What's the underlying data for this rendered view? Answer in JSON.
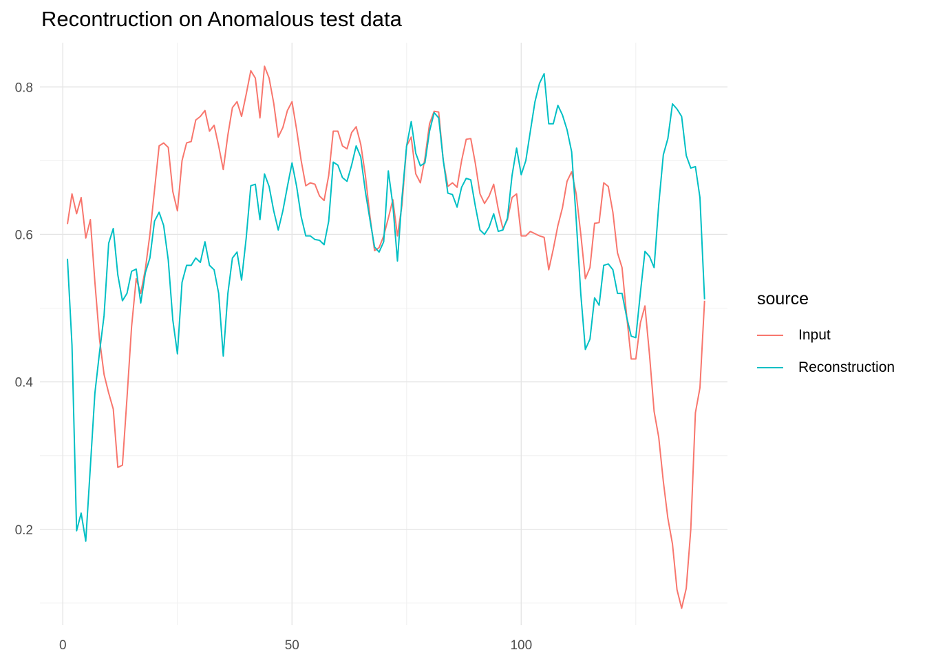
{
  "chart_data": {
    "type": "line",
    "title": "Recontruction on Anomalous test data",
    "xlabel": "",
    "ylabel": "",
    "xlim": [
      -5,
      145
    ],
    "ylim": [
      0.07,
      0.86
    ],
    "x_ticks": [
      0,
      50,
      100
    ],
    "x_minor_ticks": [
      25,
      75,
      125
    ],
    "y_ticks": [
      0.2,
      0.4,
      0.6,
      0.8
    ],
    "y_minor_ticks": [
      0.1,
      0.3,
      0.5,
      0.7
    ],
    "grid": true,
    "legend": {
      "title": "source",
      "position": "right"
    },
    "series": [
      {
        "name": "Input",
        "color": "#F8766D",
        "values": [
          0.614,
          0.655,
          0.628,
          0.65,
          0.595,
          0.62,
          0.535,
          0.458,
          0.41,
          0.385,
          0.363,
          0.284,
          0.287,
          0.378,
          0.475,
          0.54,
          0.52,
          0.553,
          0.6,
          0.66,
          0.72,
          0.724,
          0.718,
          0.658,
          0.632,
          0.7,
          0.724,
          0.726,
          0.755,
          0.76,
          0.768,
          0.74,
          0.748,
          0.72,
          0.688,
          0.735,
          0.772,
          0.78,
          0.76,
          0.79,
          0.822,
          0.812,
          0.758,
          0.828,
          0.812,
          0.778,
          0.732,
          0.745,
          0.768,
          0.78,
          0.742,
          0.7,
          0.666,
          0.67,
          0.668,
          0.652,
          0.646,
          0.68,
          0.74,
          0.74,
          0.72,
          0.716,
          0.738,
          0.746,
          0.722,
          0.68,
          0.625,
          0.578,
          0.582,
          0.598,
          0.622,
          0.647,
          0.598,
          0.64,
          0.72,
          0.732,
          0.682,
          0.67,
          0.703,
          0.75,
          0.767,
          0.766,
          0.7,
          0.665,
          0.67,
          0.664,
          0.7,
          0.729,
          0.73,
          0.696,
          0.655,
          0.642,
          0.652,
          0.668,
          0.634,
          0.608,
          0.62,
          0.65,
          0.655,
          0.598,
          0.598,
          0.604,
          0.601,
          0.598,
          0.596,
          0.552,
          0.58,
          0.612,
          0.636,
          0.672,
          0.685,
          0.655,
          0.6,
          0.54,
          0.555,
          0.615,
          0.616,
          0.67,
          0.665,
          0.63,
          0.575,
          0.555,
          0.49,
          0.431,
          0.431,
          0.48,
          0.503,
          0.436,
          0.36,
          0.325,
          0.265,
          0.215,
          0.18,
          0.118,
          0.093,
          0.12,
          0.2,
          0.358,
          0.392,
          0.51
        ]
      },
      {
        "name": "Reconstruction",
        "color": "#00BFC4",
        "values": [
          0.567,
          0.45,
          0.198,
          0.222,
          0.184,
          0.285,
          0.385,
          0.44,
          0.49,
          0.588,
          0.608,
          0.545,
          0.51,
          0.52,
          0.55,
          0.553,
          0.507,
          0.548,
          0.568,
          0.618,
          0.63,
          0.612,
          0.565,
          0.484,
          0.438,
          0.535,
          0.558,
          0.558,
          0.568,
          0.562,
          0.59,
          0.558,
          0.552,
          0.52,
          0.435,
          0.52,
          0.568,
          0.576,
          0.538,
          0.595,
          0.666,
          0.668,
          0.62,
          0.682,
          0.665,
          0.632,
          0.606,
          0.632,
          0.665,
          0.697,
          0.665,
          0.624,
          0.598,
          0.598,
          0.593,
          0.592,
          0.586,
          0.618,
          0.698,
          0.694,
          0.677,
          0.672,
          0.694,
          0.72,
          0.705,
          0.658,
          0.62,
          0.583,
          0.576,
          0.59,
          0.686,
          0.64,
          0.564,
          0.65,
          0.72,
          0.753,
          0.71,
          0.693,
          0.697,
          0.74,
          0.765,
          0.758,
          0.7,
          0.656,
          0.654,
          0.637,
          0.664,
          0.676,
          0.674,
          0.638,
          0.606,
          0.6,
          0.61,
          0.628,
          0.604,
          0.606,
          0.622,
          0.68,
          0.717,
          0.681,
          0.7,
          0.74,
          0.78,
          0.805,
          0.818,
          0.75,
          0.75,
          0.775,
          0.762,
          0.742,
          0.712,
          0.62,
          0.519,
          0.444,
          0.458,
          0.514,
          0.504,
          0.558,
          0.56,
          0.552,
          0.52,
          0.52,
          0.488,
          0.462,
          0.46,
          0.521,
          0.577,
          0.57,
          0.555,
          0.64,
          0.708,
          0.73,
          0.777,
          0.77,
          0.76,
          0.707,
          0.69,
          0.692,
          0.65,
          0.512
        ]
      }
    ]
  }
}
